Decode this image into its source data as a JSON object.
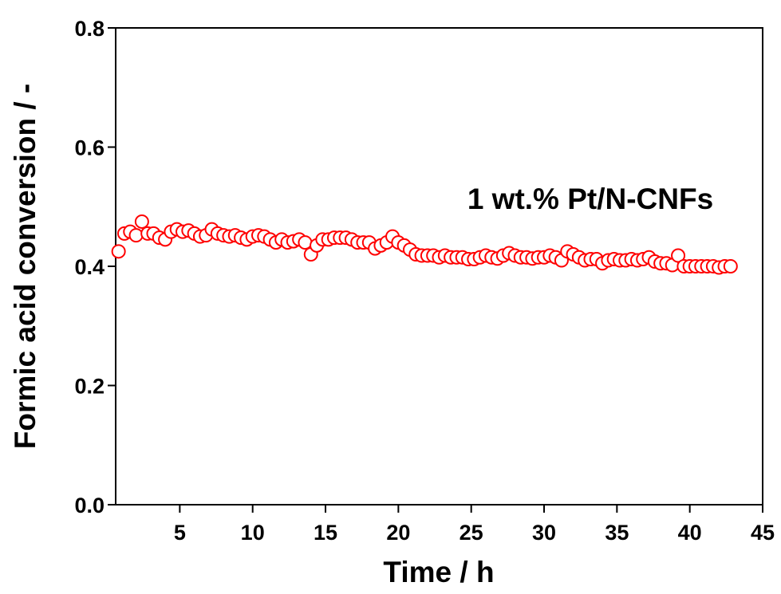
{
  "chart_data": {
    "type": "scatter",
    "x_label": "Time / h",
    "y_label": "Formic acid conversion / -",
    "annotation": "1 wt.% Pt/N-CNFs",
    "xlim": [
      0.6,
      45
    ],
    "ylim": [
      0,
      0.8
    ],
    "xticks": [
      5,
      10,
      15,
      20,
      25,
      30,
      35,
      40,
      45
    ],
    "yticks": [
      {
        "value": 0,
        "label": "0.0"
      },
      0.2,
      0.4,
      0.6,
      0.8
    ],
    "series": [
      {
        "color": "#ff0000",
        "x": [
          0.8,
          1.2,
          1.6,
          2.0,
          2.4,
          2.8,
          3.2,
          3.6,
          4.0,
          4.4,
          4.8,
          5.2,
          5.6,
          6.0,
          6.4,
          6.8,
          7.2,
          7.6,
          8.0,
          8.4,
          8.8,
          9.2,
          9.6,
          10.0,
          10.4,
          10.8,
          11.2,
          11.6,
          12.0,
          12.4,
          12.8,
          13.2,
          13.6,
          14.0,
          14.4,
          14.8,
          15.2,
          15.6,
          16.0,
          16.4,
          16.8,
          17.2,
          17.6,
          18.0,
          18.4,
          18.8,
          19.2,
          19.6,
          20.0,
          20.4,
          20.8,
          21.2,
          21.6,
          22.0,
          22.4,
          22.8,
          23.2,
          23.6,
          24.0,
          24.4,
          24.8,
          25.2,
          25.6,
          26.0,
          26.4,
          26.8,
          27.2,
          27.6,
          28.0,
          28.4,
          28.8,
          29.2,
          29.6,
          30.0,
          30.4,
          30.8,
          31.2,
          31.6,
          32.0,
          32.4,
          32.8,
          33.2,
          33.6,
          34.0,
          34.4,
          34.8,
          35.2,
          35.6,
          36.0,
          36.4,
          36.8,
          37.2,
          37.6,
          38.0,
          38.4,
          38.8,
          39.2,
          39.6,
          40.0,
          40.4,
          40.8,
          41.2,
          41.6,
          42.0,
          42.4,
          42.8
        ],
        "values": [
          0.425,
          0.455,
          0.458,
          0.452,
          0.475,
          0.455,
          0.455,
          0.448,
          0.445,
          0.458,
          0.462,
          0.458,
          0.46,
          0.455,
          0.45,
          0.452,
          0.462,
          0.455,
          0.452,
          0.45,
          0.452,
          0.448,
          0.445,
          0.45,
          0.452,
          0.45,
          0.445,
          0.44,
          0.445,
          0.44,
          0.442,
          0.445,
          0.44,
          0.42,
          0.435,
          0.445,
          0.445,
          0.448,
          0.448,
          0.448,
          0.445,
          0.44,
          0.44,
          0.44,
          0.43,
          0.435,
          0.44,
          0.45,
          0.44,
          0.435,
          0.428,
          0.42,
          0.418,
          0.418,
          0.418,
          0.415,
          0.418,
          0.415,
          0.415,
          0.415,
          0.412,
          0.412,
          0.415,
          0.418,
          0.415,
          0.413,
          0.418,
          0.422,
          0.418,
          0.415,
          0.415,
          0.413,
          0.415,
          0.415,
          0.418,
          0.415,
          0.41,
          0.425,
          0.42,
          0.415,
          0.41,
          0.412,
          0.412,
          0.405,
          0.41,
          0.412,
          0.41,
          0.41,
          0.412,
          0.41,
          0.412,
          0.415,
          0.408,
          0.405,
          0.405,
          0.402,
          0.418,
          0.4,
          0.4,
          0.4,
          0.4,
          0.4,
          0.4,
          0.398,
          0.4,
          0.4
        ]
      }
    ]
  }
}
